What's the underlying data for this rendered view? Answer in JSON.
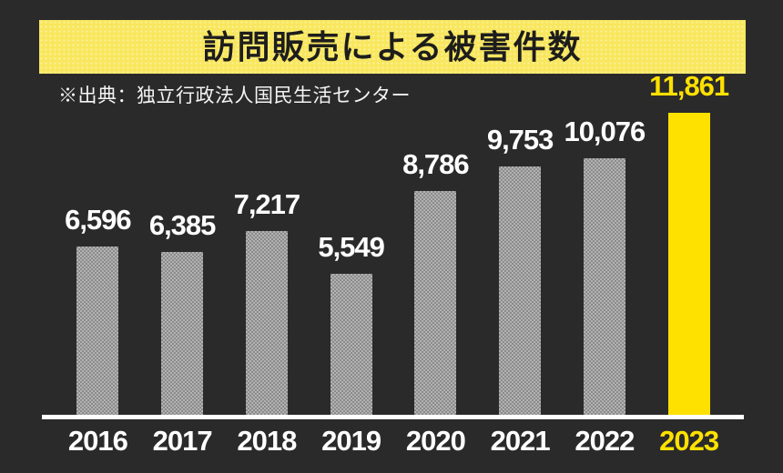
{
  "title": "訪問販売による被害件数",
  "source": "※出典：独立行政法人国民生活センター",
  "colors": {
    "background": "#2a2a2b",
    "banner_yellow": "#f8e75e",
    "title_text": "#1d1d1d",
    "bar_gray": "#9c9c9c",
    "highlight_yellow": "#ffe100",
    "axis_white": "#ffffff",
    "label_white": "#ffffff"
  },
  "chart_data": {
    "type": "bar",
    "title": "訪問販売による被害件数",
    "source_note": "※出典：独立行政法人国民生活センター",
    "categories": [
      "2016",
      "2017",
      "2018",
      "2019",
      "2020",
      "2021",
      "2022",
      "2023"
    ],
    "values": [
      6596,
      6385,
      7217,
      5549,
      8786,
      9753,
      10076,
      11861
    ],
    "value_labels": [
      "6,596",
      "6,385",
      "7,217",
      "5,549",
      "8,786",
      "9,753",
      "10,076",
      "11,861"
    ],
    "highlight_index": 7,
    "xlabel": "",
    "ylabel": "",
    "ylim": [
      0,
      13000
    ],
    "grid": false,
    "legend": false
  }
}
